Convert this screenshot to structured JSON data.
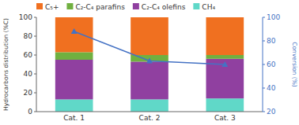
{
  "chart_data": {
    "type": "bar",
    "stacked": true,
    "grid": false,
    "legend": "top",
    "categories": [
      "Cat. 1",
      "Cat. 2",
      "Cat. 3"
    ],
    "series": [
      {
        "name": "CH₄",
        "color": "#60D8C8",
        "values": [
          13,
          13,
          14
        ]
      },
      {
        "name": "C₂-C₄ olefins",
        "color": "#9040A0",
        "values": [
          42,
          40,
          42
        ]
      },
      {
        "name": "C₂-C₄ parafins",
        "color": "#70B040",
        "values": [
          8,
          7,
          4
        ]
      },
      {
        "name": "C₅+",
        "color": "#F07020",
        "values": [
          37,
          40,
          40
        ]
      },
      {
        "type": "line",
        "axis": "y2",
        "marker": "triangle",
        "color": "#4472C4",
        "values": [
          88,
          63,
          60
        ]
      }
    ],
    "ylabel": "Hydrocarbons distribution (%C)",
    "y2label": "Conversion (%)",
    "ylim": [
      0,
      100
    ],
    "yticks": [
      0,
      20,
      40,
      60,
      80,
      100
    ],
    "y2lim": [
      20,
      100
    ],
    "y2ticks": [
      20,
      40,
      60,
      80,
      100
    ]
  }
}
